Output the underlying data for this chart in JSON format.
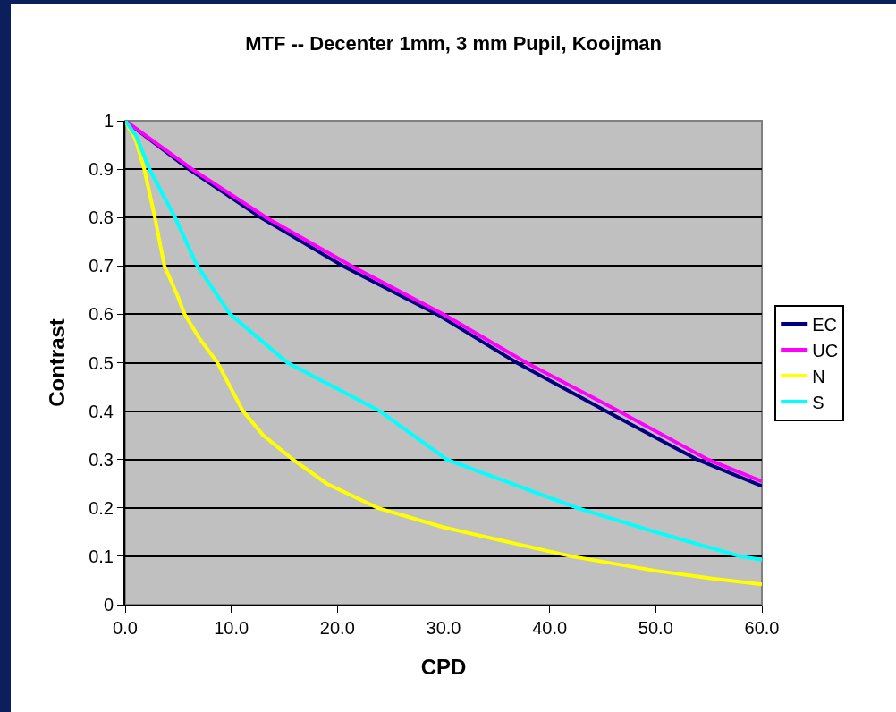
{
  "chart_data": {
    "type": "line",
    "title": "MTF -- Decenter 1mm, 3 mm Pupil, Kooijman",
    "xlabel": "CPD",
    "ylabel": "Contrast",
    "series": [
      {
        "name": "EC",
        "color": "#000080",
        "x": [
          0,
          6,
          12.8,
          20.5,
          29.4,
          36.9,
          45.3,
          53.9,
          60
        ],
        "values": [
          1,
          0.9,
          0.8,
          0.7,
          0.6,
          0.5,
          0.4,
          0.3,
          0.245
        ]
      },
      {
        "name": "UC",
        "color": "#ff00ff",
        "x": [
          0,
          6.3,
          13.3,
          21.3,
          30,
          37.8,
          46.5,
          54.9,
          60
        ],
        "values": [
          1,
          0.9,
          0.8,
          0.7,
          0.6,
          0.5,
          0.4,
          0.3,
          0.255
        ]
      },
      {
        "name": "N",
        "color": "#ffff00",
        "x": [
          0,
          1,
          1.8,
          2.8,
          3.7,
          4.9,
          5.6,
          7,
          8.7,
          11.1,
          13,
          15.8,
          19,
          23.8,
          30,
          35,
          42,
          50,
          55,
          60
        ],
        "values": [
          1,
          0.96,
          0.9,
          0.8,
          0.7,
          0.64,
          0.6,
          0.55,
          0.5,
          0.4,
          0.35,
          0.3,
          0.25,
          0.2,
          0.16,
          0.135,
          0.1,
          0.07,
          0.055,
          0.042
        ]
      },
      {
        "name": "S",
        "color": "#00ffff",
        "x": [
          0,
          1,
          2.3,
          4.7,
          6.8,
          9.9,
          15.3,
          24,
          30.3,
          42.6,
          50,
          57.9,
          60
        ],
        "values": [
          1,
          0.97,
          0.9,
          0.8,
          0.7,
          0.6,
          0.5,
          0.4,
          0.3,
          0.2,
          0.15,
          0.1,
          0.093
        ]
      }
    ],
    "xlim": [
      0,
      60
    ],
    "xticks": [
      {
        "value": 0,
        "label": "0.0"
      },
      {
        "value": 10,
        "label": "10.0"
      },
      {
        "value": 20,
        "label": "20.0"
      },
      {
        "value": 30,
        "label": "30.0"
      },
      {
        "value": 40,
        "label": "40.0"
      },
      {
        "value": 50,
        "label": "50.0"
      },
      {
        "value": 60,
        "label": "60.0"
      }
    ],
    "ylim": [
      0,
      1
    ],
    "yticks": [
      0,
      0.1,
      0.2,
      0.3,
      0.4,
      0.5,
      0.6,
      0.7,
      0.8,
      0.9,
      1
    ],
    "grid": "y",
    "legend": "right",
    "marker": "none",
    "line_style": "solid"
  }
}
